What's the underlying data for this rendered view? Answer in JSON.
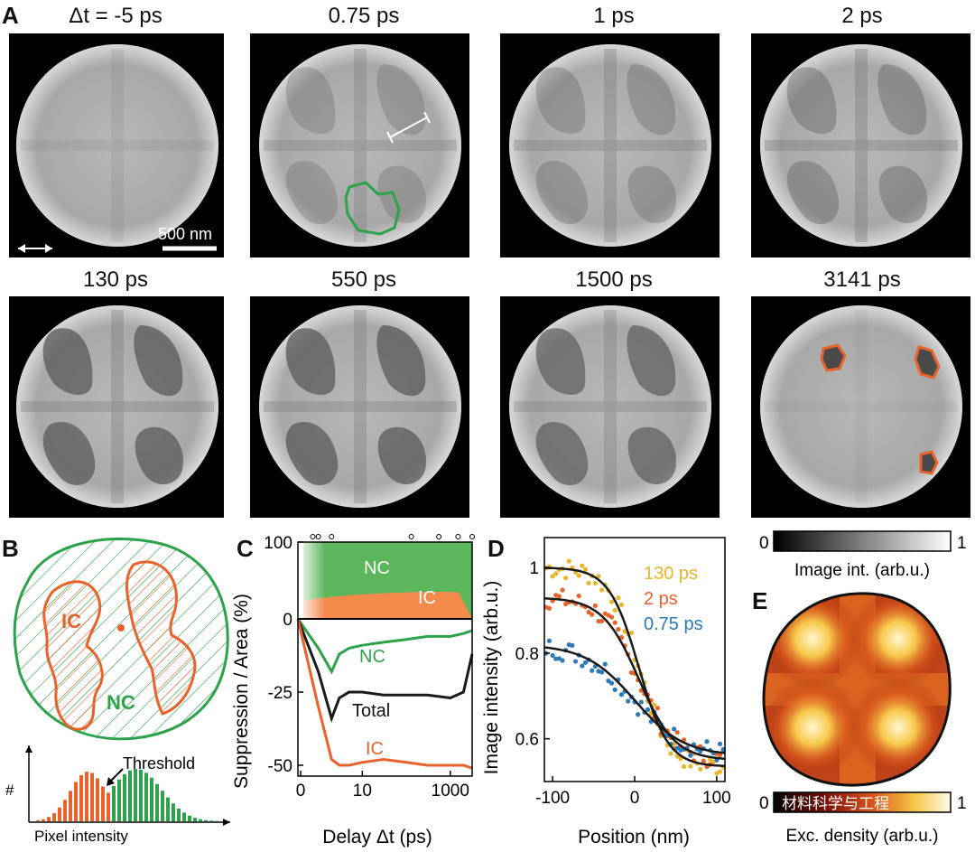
{
  "panel_labels": [
    "A",
    "B",
    "C",
    "D",
    "E"
  ],
  "panel_a": {
    "titles_row1": [
      "Δt = -5 ps",
      "0.75 ps",
      "1 ps",
      "2 ps"
    ],
    "titles_row2": [
      "130 ps",
      "550 ps",
      "1500 ps",
      "3141 ps"
    ],
    "scale_bar": "500 nm"
  },
  "colorbar_gray": {
    "min": "0",
    "max": "1",
    "label": "Image int. (arb.u.)"
  },
  "panel_b": {
    "ic_label": "IC",
    "nc_label": "NC",
    "threshold": "Threshold",
    "hist_xlabel": "Pixel intensity",
    "hist_ylabel": "#"
  },
  "panel_e": {
    "min": "0",
    "max": "1",
    "label": "Exc. density (arb.u.)",
    "watermark": "材料科学与工程"
  },
  "colors": {
    "nc": "#2ca24a",
    "ic": "#e8632b",
    "d_130": "#e7b62a",
    "d_2": "#e8632b",
    "d_075": "#2b7bb9",
    "fit": "#1a1a1a"
  },
  "chart_data": [
    {
      "id": "C",
      "type": "line",
      "ylabel": "Suppression / Area (%)",
      "xlabel": "Delay Δt (ps)",
      "xticks": [
        "0",
        "10",
        "1000"
      ],
      "yticks": [
        "100",
        "0",
        "-25",
        "-50"
      ],
      "ylim": [
        -55,
        100
      ],
      "area_labels": [
        "NC",
        "IC"
      ],
      "area_values": {
        "IC_percent": 30,
        "NC_percent": 70
      },
      "series": [
        {
          "name": "NC",
          "x": [
            0,
            1,
            2,
            3,
            5,
            10,
            30,
            100,
            300,
            1000,
            2000,
            3141
          ],
          "y": [
            0,
            -10,
            -18,
            -12,
            -10,
            -9,
            -8,
            -7,
            -6,
            -6,
            -5,
            -4
          ]
        },
        {
          "name": "Total",
          "x": [
            0,
            1,
            2,
            3,
            5,
            10,
            30,
            100,
            300,
            1000,
            2000,
            3141
          ],
          "y": [
            0,
            -18,
            -34,
            -27,
            -25,
            -25,
            -26,
            -26,
            -26,
            -27,
            -25,
            -12
          ]
        },
        {
          "name": "IC",
          "x": [
            0,
            1,
            2,
            3,
            5,
            10,
            30,
            100,
            300,
            1000,
            2000,
            3141
          ],
          "y": [
            0,
            -30,
            -48,
            -50,
            -50,
            -49,
            -48,
            -49,
            -50,
            -50,
            -50,
            -51
          ]
        }
      ],
      "series_labels": {
        "nc": "NC",
        "total": "Total",
        "ic": "IC"
      }
    },
    {
      "id": "D",
      "type": "scatter",
      "ylabel": "Image intensity (arb.u.)",
      "xlabel": "Position (nm)",
      "xlim": [
        -110,
        110
      ],
      "ylim": [
        0.5,
        1.07
      ],
      "xticks": [
        "-100",
        "0",
        "100"
      ],
      "yticks": [
        "1",
        "0.8",
        "0.6"
      ],
      "legend": [
        "130 ps",
        "2 ps",
        "0.75 ps"
      ],
      "series": [
        {
          "name": "130 ps",
          "high": 1.0,
          "low": 0.535,
          "center": 5,
          "width": 18
        },
        {
          "name": "2 ps",
          "high": 0.93,
          "low": 0.55,
          "center": 5,
          "width": 22
        },
        {
          "name": "0.75 ps",
          "high": 0.82,
          "low": 0.56,
          "center": 0,
          "width": 30
        }
      ]
    }
  ]
}
